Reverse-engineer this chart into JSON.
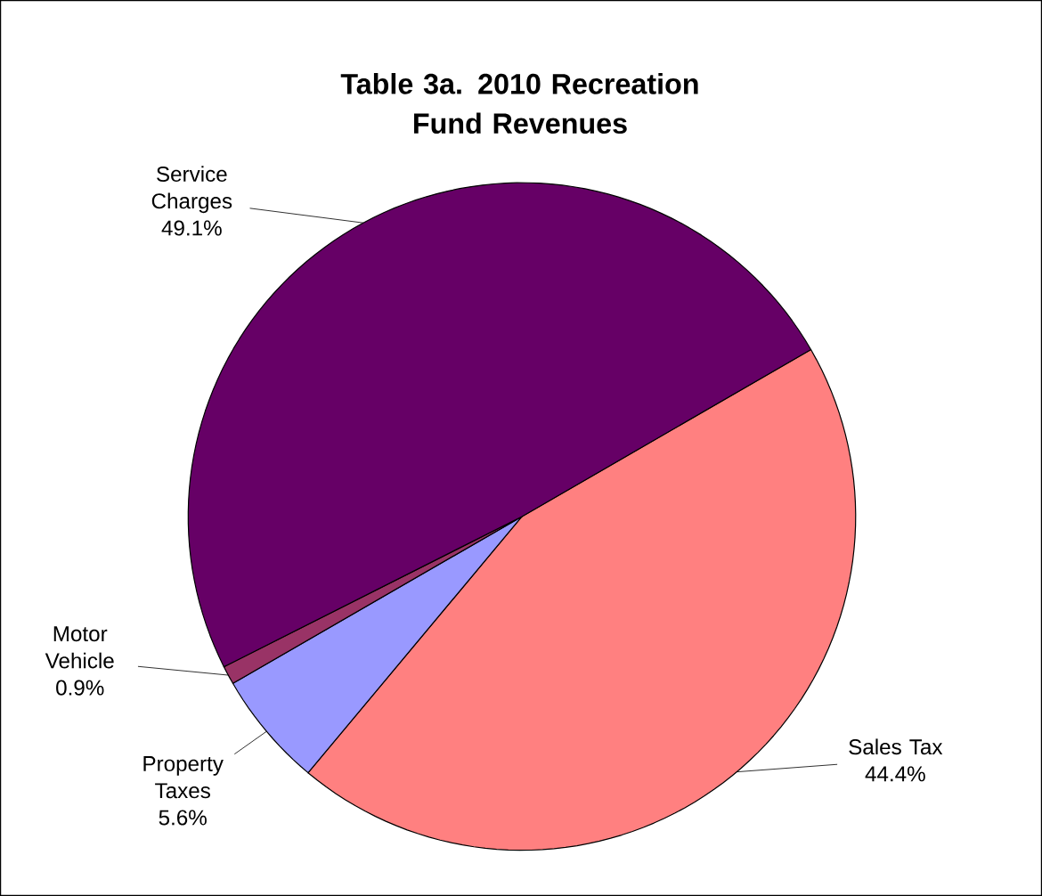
{
  "chart_data": {
    "type": "pie",
    "title": "Table 3a.  2010 Recreation Fund Revenues",
    "categories": [
      "Sales Tax",
      "Property Taxes",
      "Motor Vehicle",
      "Service Charges"
    ],
    "values": [
      44.4,
      5.6,
      0.9,
      49.1
    ],
    "value_labels": [
      "44.4%",
      "5.6%",
      "0.9%",
      "49.1%"
    ],
    "colors": [
      "#ff8080",
      "#9999ff",
      "#993366",
      "#660066"
    ]
  }
}
